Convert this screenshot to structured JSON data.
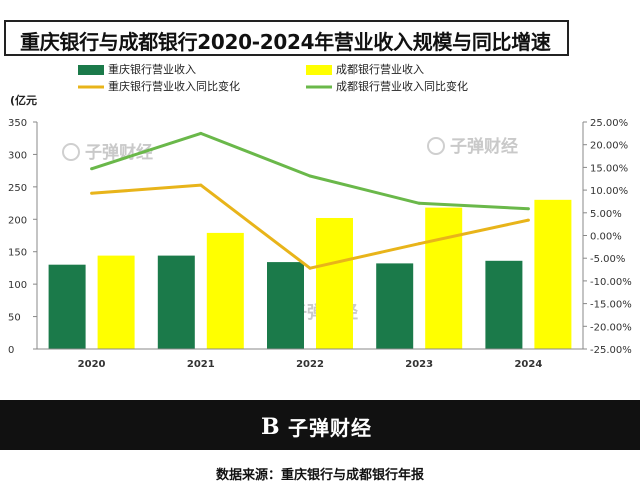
{
  "title": "重庆银行与成都银行2020-2024年营业收入规模与同比增速",
  "unit_label": "(亿元",
  "watermark": "子弹财经",
  "footer": {
    "logo_glyph": "B",
    "brand": "子弹财经"
  },
  "source": "数据来源：重庆银行与成都银行年报",
  "colors": {
    "cq_bar": "#1b7a4a",
    "cd_bar": "#ffff00",
    "cq_line": "#e8b41a",
    "cd_line": "#6ab84a",
    "band": "#111111"
  },
  "chart_data": {
    "type": "bar",
    "categories": [
      "2020",
      "2021",
      "2022",
      "2023",
      "2024"
    ],
    "series": [
      {
        "name": "重庆银行营业收入",
        "type": "bar",
        "axis": "left",
        "values": [
          130,
          144,
          134,
          132,
          136
        ]
      },
      {
        "name": "成都银行营业收入",
        "type": "bar",
        "axis": "left",
        "values": [
          144,
          179,
          202,
          218,
          230
        ]
      },
      {
        "name": "重庆银行营业收入同比变化",
        "type": "line",
        "axis": "right",
        "values": [
          9.3,
          11.1,
          -7.2,
          -1.8,
          3.4
        ]
      },
      {
        "name": "成都银行营业收入同比变化",
        "type": "line",
        "axis": "right",
        "values": [
          14.7,
          22.5,
          13.1,
          7.1,
          5.9
        ]
      }
    ],
    "y_left": {
      "min": 0,
      "max": 350,
      "ticks": [
        "0",
        "50",
        "100",
        "150",
        "200",
        "250",
        "300",
        "350"
      ]
    },
    "y_right": {
      "min": -25,
      "max": 25,
      "ticks": [
        "-25.00%",
        "-20.00%",
        "-15.00%",
        "-10.00%",
        "-5.00%",
        "0.00%",
        "5.00%",
        "10.00%",
        "15.00%",
        "20.00%",
        "25.00%"
      ]
    },
    "legend": [
      {
        "label": "重庆银行营业收入",
        "kind": "bar",
        "color": "#1b7a4a"
      },
      {
        "label": "成都银行营业收入",
        "kind": "bar",
        "color": "#ffff00"
      },
      {
        "label": "重庆银行营业收入同比变化",
        "kind": "line",
        "color": "#e8b41a"
      },
      {
        "label": "成都银行营业收入同比变化",
        "kind": "line",
        "color": "#6ab84a"
      }
    ],
    "grid": false,
    "legend_position": "top"
  }
}
